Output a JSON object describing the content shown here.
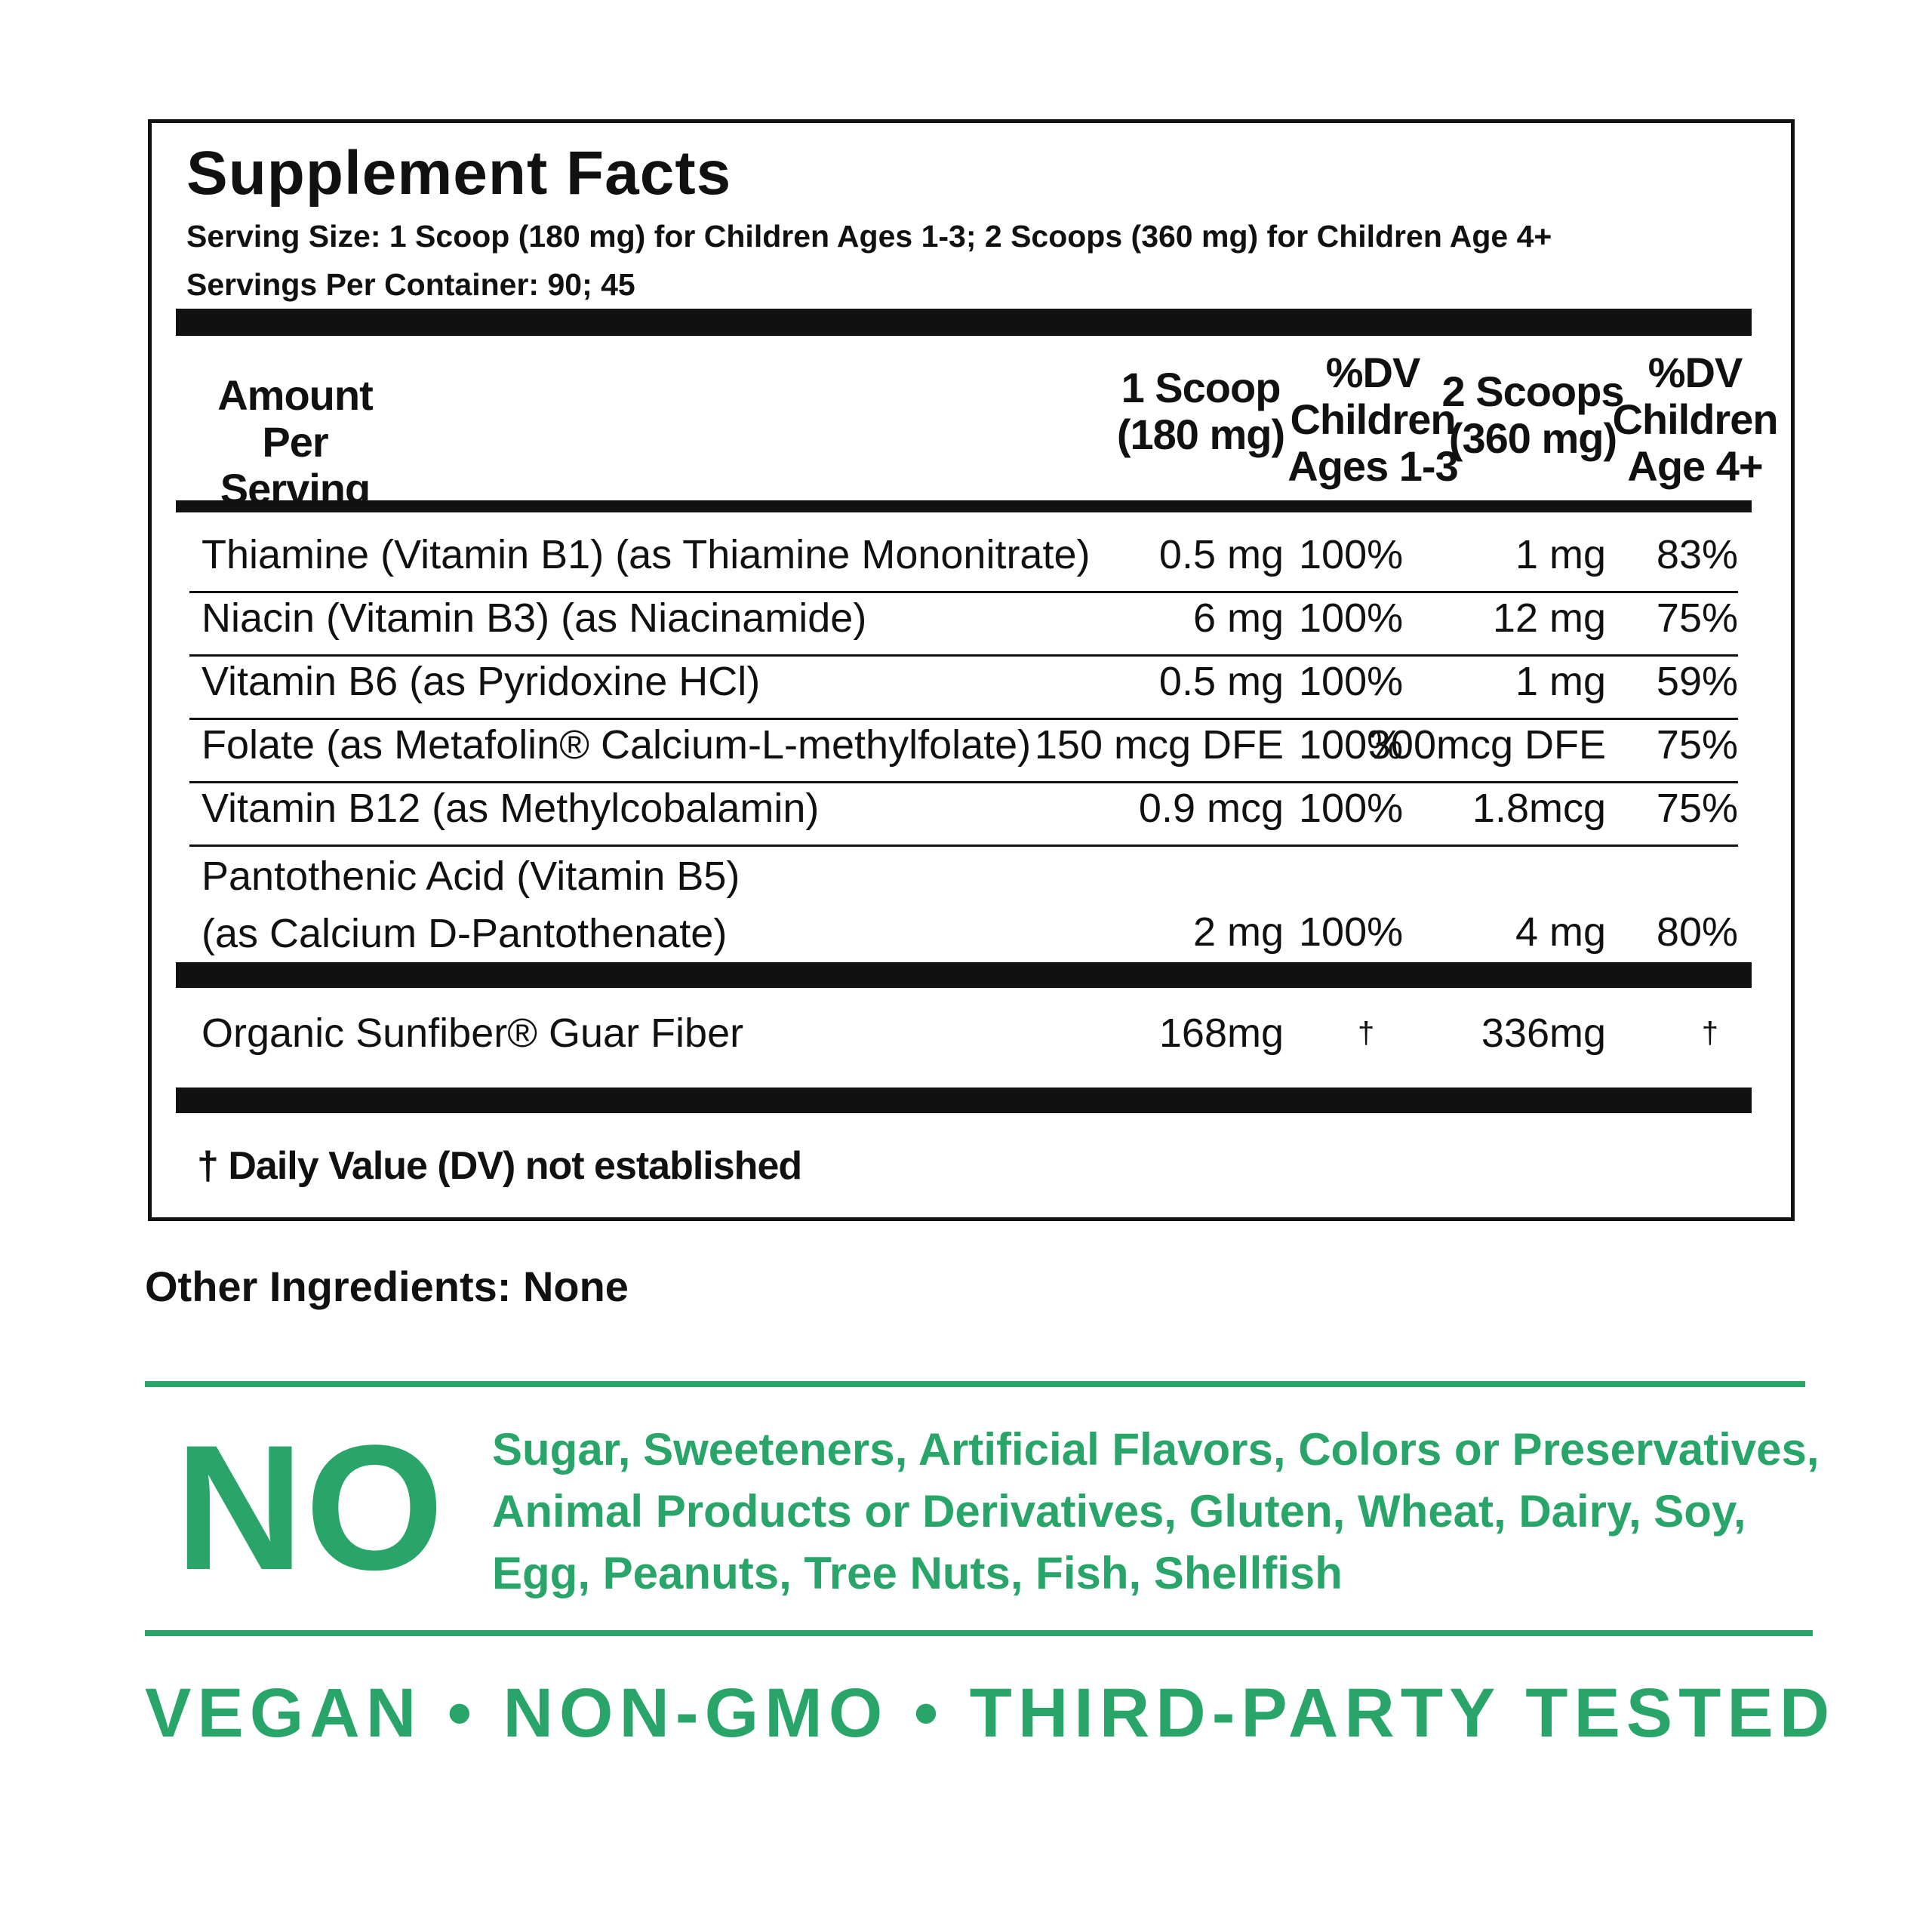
{
  "facts": {
    "title": "Supplement Facts",
    "serving_size": "Serving Size: 1 Scoop (180 mg) for Children Ages 1-3; 2 Scoops (360 mg) for Children Age 4+",
    "servings_per_container": "Servings Per Container: 90; 45",
    "headers": {
      "amount": [
        "Amount",
        "Per Serving"
      ],
      "scoop1": [
        "1 Scoop",
        "(180 mg)"
      ],
      "dv1": [
        "%DV",
        "Children",
        "Ages 1-3"
      ],
      "scoop2": [
        "2 Scoops",
        "(360 mg)"
      ],
      "dv2": [
        "%DV",
        "Children",
        "Age 4+"
      ]
    },
    "rows": [
      {
        "name": "Thiamine (Vitamin B1) (as Thiamine Mononitrate)",
        "scoop1": "0.5 mg",
        "dv1": "100%",
        "scoop2": "1 mg",
        "dv2": "83%"
      },
      {
        "name": "Niacin (Vitamin B3) (as Niacinamide)",
        "scoop1": "6 mg",
        "dv1": "100%",
        "scoop2": "12 mg",
        "dv2": "75%"
      },
      {
        "name": "Vitamin B6 (as Pyridoxine HCl)",
        "scoop1": "0.5 mg",
        "dv1": "100%",
        "scoop2": "1 mg",
        "dv2": "59%"
      },
      {
        "name": "Folate (as Metafolin® Calcium-L-methylfolate)",
        "scoop1": "150 mcg DFE",
        "dv1": "100%",
        "scoop2": "300mcg DFE",
        "dv2": "75%"
      },
      {
        "name": "Vitamin B12 (as Methylcobalamin)",
        "scoop1": "0.9 mcg",
        "dv1": "100%",
        "scoop2": "1.8mcg",
        "dv2": "75%"
      },
      {
        "name_line1": "Pantothenic Acid (Vitamin B5)",
        "name_line2": "(as Calcium D-Pantothenate)",
        "scoop1": "2 mg",
        "dv1": "100%",
        "scoop2": "4 mg",
        "dv2": "80%"
      }
    ],
    "fiber": {
      "name": "Organic Sunfiber® Guar Fiber",
      "scoop1": "168mg",
      "dv1": "†",
      "scoop2": "336mg",
      "dv2": "†"
    },
    "footnote": "† Daily Value (DV) not established"
  },
  "other_ingredients": "Other Ingredients: None",
  "free_from": {
    "no_label": "NO",
    "lines": [
      "Sugar, Sweeteners, Artificial Flavors, Colors or Preservatives,",
      "Animal Products or Derivatives, Gluten, Wheat, Dairy, Soy,",
      "Egg, Peanuts, Tree Nuts, Fish, Shellfish"
    ]
  },
  "claims": "VEGAN • NON-GMO • THIRD-PARTY TESTED",
  "colors": {
    "brand_green": "#2aa56a",
    "text": "#111111"
  }
}
